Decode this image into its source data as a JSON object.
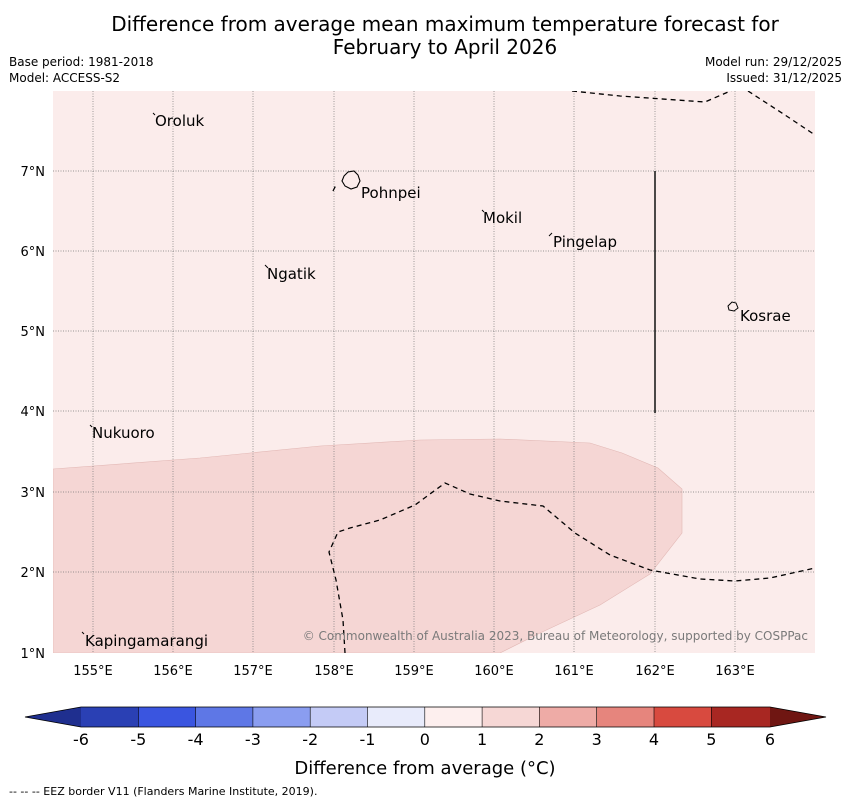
{
  "title_line1": "Difference from average mean maximum temperature forecast for",
  "title_line2": "February to April 2026",
  "base_period": "Base period: 1981-2018",
  "model": "Model: ACCESS-S2",
  "model_run": "Model run: 29/12/2025",
  "issued": "Issued: 31/12/2025",
  "lat_labels": [
    "7°N",
    "6°N",
    "5°N",
    "4°N",
    "3°N",
    "2°N",
    "1°N"
  ],
  "lon_labels": [
    "155°E",
    "156°E",
    "157°E",
    "158°E",
    "159°E",
    "160°E",
    "161°E",
    "162°E",
    "163°E"
  ],
  "places": {
    "oroluk": "Oroluk",
    "pohnpei": "Pohnpei",
    "mokil": "Mokil",
    "pingelap": "Pingelap",
    "ngatik": "Ngatik",
    "kosrae": "Kosrae",
    "nukuoro": "Nukuoro",
    "kapingamarangi": "Kapingamarangi"
  },
  "copyright": "© Commonwealth of Australia 2023, Bureau of Meteorology, supported by COSPPac",
  "colorbar": {
    "label": "Difference from average (°C)",
    "ticks": [
      "-6",
      "-5",
      "-4",
      "-3",
      "-2",
      "-1",
      "0",
      "1",
      "2",
      "3",
      "4",
      "5",
      "6"
    ],
    "colors": [
      "#1f2f8f",
      "#2a40b4",
      "#3a55e0",
      "#5e77e6",
      "#8a9df0",
      "#c4cbf6",
      "#e8ebfb",
      "#fdefee",
      "#f6d7d5",
      "#eeaba6",
      "#e6857d",
      "#d84a3f",
      "#a82722",
      "#6f1612"
    ]
  },
  "map_colors": {
    "base": "#fbeceb",
    "warm": "#f5d6d4"
  },
  "footnote": "-- -- -- EEZ border V11 (Flanders Marine Institute, 2019)."
}
